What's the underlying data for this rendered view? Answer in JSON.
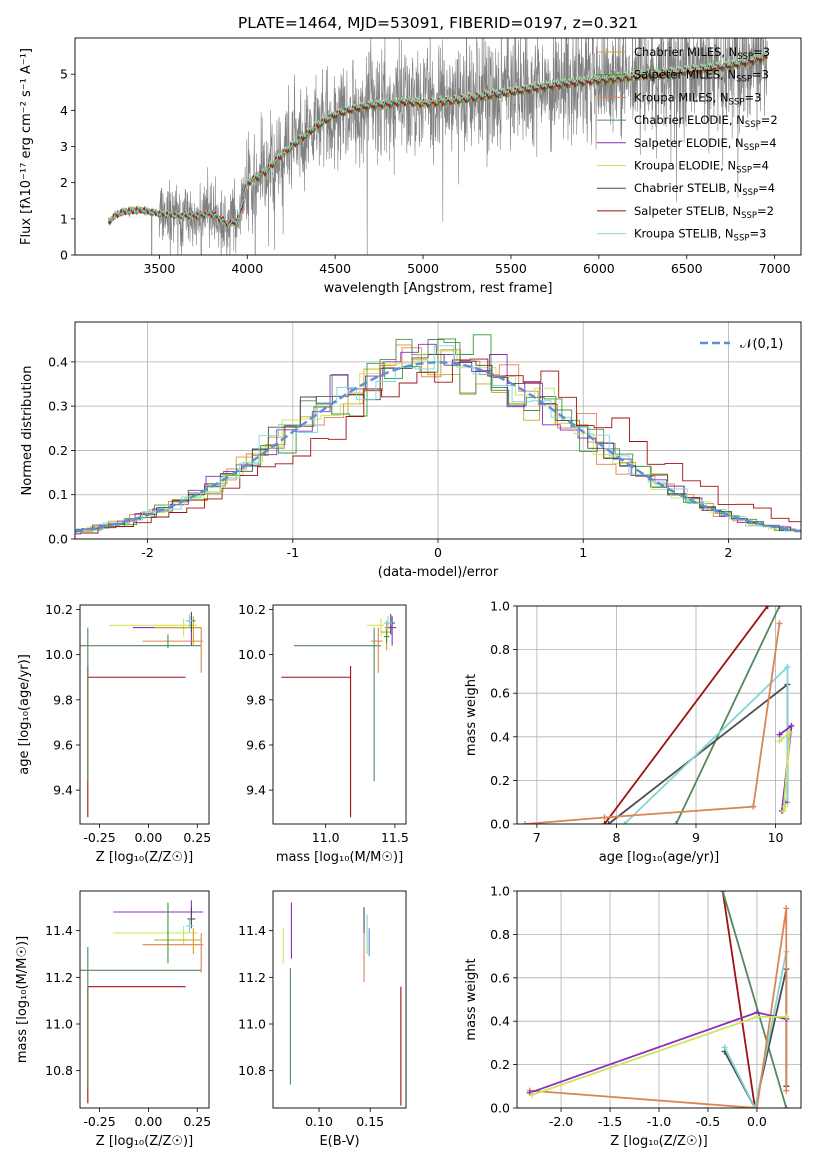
{
  "colors": {
    "chabrier_miles": "#d4a017",
    "salpeter_miles": "#2ca02c",
    "kroupa_miles": "#dd8452",
    "chabrier_elodie": "#55885f",
    "salpeter_elodie": "#8c2cbf",
    "kroupa_elodie": "#c9e75a",
    "chabrier_stelib": "#4d4d4d",
    "salpeter_stelib": "#a01010",
    "kroupa_stelib": "#7fd6d8",
    "gaussian": "#5b8fd8",
    "data_spectrum": "#808080"
  },
  "chart_data": [
    {
      "id": "spectrum",
      "type": "line",
      "title": "PLATE=1464, MJD=53091, FIBERID=0197, z=0.321",
      "xlabel": "wavelength [Angstrom, rest frame]",
      "ylabel": "Flux [fλ10⁻¹⁷ erg cm⁻² s⁻¹ A⁻¹]",
      "xlim": [
        3020,
        7150
      ],
      "ylim": [
        0,
        6
      ],
      "xticks": [
        3500,
        4000,
        4500,
        5000,
        5500,
        6000,
        6500,
        7000
      ],
      "yticks": [
        0,
        1,
        2,
        3,
        4,
        5
      ],
      "grid": false,
      "legend_position": "top-right",
      "legend": [
        {
          "label": "Chabrier MILES, N",
          "sub": "SSP",
          "suffix": "=3",
          "color_key": "chabrier_miles"
        },
        {
          "label": "Salpeter MILES, N",
          "sub": "SSP",
          "suffix": "=3",
          "color_key": "salpeter_miles"
        },
        {
          "label": "Kroupa MILES, N",
          "sub": "SSP",
          "suffix": "=3",
          "color_key": "kroupa_miles"
        },
        {
          "label": "Chabrier ELODIE, N",
          "sub": "SSP",
          "suffix": "=2",
          "color_key": "chabrier_elodie"
        },
        {
          "label": "Salpeter ELODIE, N",
          "sub": "SSP",
          "suffix": "=4",
          "color_key": "salpeter_elodie"
        },
        {
          "label": "Kroupa ELODIE, N",
          "sub": "SSP",
          "suffix": "=4",
          "color_key": "kroupa_elodie"
        },
        {
          "label": "Chabrier STELIB, N",
          "sub": "SSP",
          "suffix": "=4",
          "color_key": "chabrier_stelib"
        },
        {
          "label": "Salpeter STELIB, N",
          "sub": "SSP",
          "suffix": "=2",
          "color_key": "salpeter_stelib"
        },
        {
          "label": "Kroupa STELIB, N",
          "sub": "SSP",
          "suffix": "=3",
          "color_key": "kroupa_stelib"
        }
      ],
      "model_continuum": {
        "x": [
          3210,
          3250,
          3300,
          3400,
          3500,
          3600,
          3700,
          3800,
          3900,
          3950,
          4000,
          4100,
          4200,
          4300,
          4400,
          4500,
          4600,
          4700,
          4800,
          4900,
          5000,
          5200,
          5400,
          5600,
          5800,
          6000,
          6200,
          6400,
          6600,
          6800,
          6950
        ],
        "y": [
          0.9,
          1.1,
          1.2,
          1.25,
          1.15,
          1.1,
          1.1,
          1.15,
          0.85,
          1.0,
          2.0,
          2.3,
          2.8,
          3.2,
          3.6,
          3.9,
          4.05,
          4.15,
          4.2,
          4.25,
          4.2,
          4.3,
          4.45,
          4.6,
          4.75,
          4.85,
          4.95,
          5.05,
          5.15,
          5.3,
          5.5
        ]
      },
      "data_spectrum": {
        "x_start": 3210,
        "x_end": 6960,
        "noise_scale": "increasing with wavelength"
      }
    },
    {
      "id": "residuals",
      "type": "line",
      "xlabel": "(data-model)/error",
      "ylabel": "Normed distribution",
      "xlim": [
        -2.5,
        2.5
      ],
      "ylim": [
        0,
        0.49
      ],
      "xticks": [
        -2,
        -1,
        0,
        1,
        2
      ],
      "yticks": [
        0.0,
        0.1,
        0.2,
        0.3,
        0.4
      ],
      "grid": true,
      "legend_position": "top-right",
      "legend_label": "𝒩(0,1)",
      "gaussian": {
        "mean": 0,
        "sigma": 1
      }
    },
    {
      "id": "age_vs_Z",
      "type": "scatter",
      "xlabel": "Z [log₁₀(Z/Z☉)]",
      "ylabel": "age  [log₁₀(age/yr)]",
      "xlim": [
        -0.35,
        0.31
      ],
      "ylim": [
        9.25,
        10.22
      ],
      "xticks": [
        -0.25,
        0.0,
        0.25
      ],
      "yticks": [
        9.4,
        9.6,
        9.8,
        10.0,
        10.2
      ],
      "grid": false,
      "points": [
        {
          "key": "salpeter_stelib",
          "x": -0.31,
          "y": 9.9,
          "xerr": [
            0,
            0.5
          ],
          "yerr": [
            0.62,
            0.05
          ]
        },
        {
          "key": "chabrier_elodie",
          "x": -0.31,
          "y": 10.04,
          "xerr": [
            0.05,
            0.58
          ],
          "yerr": [
            0.6,
            0.08
          ]
        },
        {
          "key": "kroupa_elodie",
          "x": 0.18,
          "y": 10.13,
          "xerr": [
            0.38,
            0.07
          ],
          "yerr": [
            0.05,
            0.03
          ]
        },
        {
          "key": "salpeter_elodie",
          "x": 0.22,
          "y": 10.12,
          "xerr": [
            0.3,
            0.04
          ],
          "yerr": [
            0.08,
            0.05
          ]
        },
        {
          "key": "kroupa_miles",
          "x": 0.27,
          "y": 10.06,
          "xerr": [
            0.3,
            0.01
          ],
          "yerr": [
            0.14,
            0.06
          ]
        },
        {
          "key": "chabrier_miles",
          "x": 0.23,
          "y": 10.12,
          "xerr": [
            0.2,
            0.04
          ],
          "yerr": [
            0.08,
            0.05
          ]
        },
        {
          "key": "chabrier_stelib",
          "x": 0.22,
          "y": 10.15,
          "xerr": [
            0.02,
            0.02
          ],
          "yerr": [
            0.05,
            0.04
          ]
        },
        {
          "key": "kroupa_stelib",
          "x": 0.21,
          "y": 10.15,
          "xerr": [
            0.02,
            0.02
          ],
          "yerr": [
            0.03,
            0.03
          ]
        },
        {
          "key": "salpeter_miles",
          "x": 0.1,
          "y": 10.06,
          "xerr": [
            0.0,
            0.0
          ],
          "yerr": [
            0.03,
            0.03
          ]
        }
      ]
    },
    {
      "id": "age_vs_mass",
      "type": "scatter",
      "xlabel": "mass [log₁₀(M/M☉)]",
      "ylabel": "",
      "xlim": [
        10.62,
        11.58
      ],
      "ylim": [
        9.25,
        10.22
      ],
      "xticks": [
        11.0,
        11.5
      ],
      "yticks": [
        9.4,
        9.6,
        9.8,
        10.0,
        10.2
      ],
      "grid": false,
      "points": [
        {
          "key": "salpeter_stelib",
          "x": 11.18,
          "y": 9.9,
          "xerr": [
            0.5,
            0
          ],
          "yerr": [
            0.62,
            0.05
          ]
        },
        {
          "key": "chabrier_elodie",
          "x": 11.35,
          "y": 10.04,
          "xerr": [
            0.58,
            0.05
          ],
          "yerr": [
            0.6,
            0.08
          ]
        },
        {
          "key": "kroupa_elodie",
          "x": 11.4,
          "y": 10.13,
          "xerr": [
            0.1,
            0.02
          ],
          "yerr": [
            0.05,
            0.03
          ]
        },
        {
          "key": "salpeter_elodie",
          "x": 11.48,
          "y": 10.12,
          "xerr": [
            0.05,
            0.03
          ],
          "yerr": [
            0.08,
            0.05
          ]
        },
        {
          "key": "kroupa_miles",
          "x": 11.38,
          "y": 10.06,
          "xerr": [
            0.05,
            0.03
          ],
          "yerr": [
            0.14,
            0.06
          ]
        },
        {
          "key": "chabrier_miles",
          "x": 11.44,
          "y": 10.1,
          "xerr": [
            0.04,
            0.03
          ],
          "yerr": [
            0.08,
            0.05
          ]
        },
        {
          "key": "chabrier_stelib",
          "x": 11.47,
          "y": 10.14,
          "xerr": [
            0.03,
            0.03
          ],
          "yerr": [
            0.05,
            0.04
          ]
        },
        {
          "key": "kroupa_stelib",
          "x": 11.45,
          "y": 10.14,
          "xerr": [
            0.03,
            0.03
          ],
          "yerr": [
            0.03,
            0.03
          ]
        },
        {
          "key": "salpeter_miles",
          "x": 11.44,
          "y": 10.08,
          "xerr": [
            0.02,
            0.02
          ],
          "yerr": [
            0.03,
            0.03
          ]
        }
      ]
    },
    {
      "id": "weight_vs_age",
      "type": "line",
      "xlabel": "age  [log₁₀(age/yr)]",
      "ylabel": "mass weight",
      "xlim": [
        6.75,
        10.32
      ],
      "ylim": [
        0,
        1
      ],
      "xticks": [
        7,
        8,
        9,
        10
      ],
      "yticks": [
        0.0,
        0.2,
        0.4,
        0.6,
        0.8,
        1.0
      ],
      "grid": true,
      "series": [
        {
          "key": "salpeter_stelib",
          "x": [
            7.85,
            9.9
          ],
          "y": [
            0.0,
            1.0
          ]
        },
        {
          "key": "chabrier_elodie",
          "x": [
            8.75,
            10.05
          ],
          "y": [
            0.0,
            1.0
          ]
        },
        {
          "key": "chabrier_stelib",
          "x": [
            7.9,
            10.15,
            10.15
          ],
          "y": [
            0.0,
            0.64,
            0.1
          ]
        },
        {
          "key": "kroupa_stelib",
          "x": [
            8.1,
            10.15,
            10.15
          ],
          "y": [
            0.0,
            0.72,
            0.1
          ]
        },
        {
          "key": "kroupa_miles",
          "x": [
            6.85,
            7.85,
            9.72,
            10.05,
            9.72
          ],
          "y": [
            0.0,
            0.03,
            0.08,
            0.92,
            0.08
          ]
        },
        {
          "key": "salpeter_elodie",
          "x": [
            10.05,
            10.2,
            10.08,
            10.12
          ],
          "y": [
            0.41,
            0.45,
            0.06,
            0.1
          ]
        },
        {
          "key": "kroupa_elodie",
          "x": [
            10.05,
            10.18,
            10.1,
            10.12
          ],
          "y": [
            0.38,
            0.42,
            0.06,
            0.08
          ]
        }
      ]
    },
    {
      "id": "mass_vs_Z",
      "type": "scatter",
      "xlabel": "Z [log₁₀(Z/Z☉)]",
      "ylabel": "mass [log₁₀(M/M☉)]",
      "xlim": [
        -0.35,
        0.31
      ],
      "ylim": [
        10.64,
        11.57
      ],
      "xticks": [
        -0.25,
        0.0,
        0.25
      ],
      "yticks": [
        10.8,
        11.0,
        11.2,
        11.4
      ],
      "grid": false,
      "points": [
        {
          "key": "salpeter_stelib",
          "x": -0.31,
          "y": 11.16,
          "xerr": [
            0,
            0.5
          ],
          "yerr": [
            0.5,
            0
          ]
        },
        {
          "key": "chabrier_elodie",
          "x": -0.31,
          "y": 11.23,
          "xerr": [
            0.05,
            0.58
          ],
          "yerr": [
            0.5,
            0.1
          ]
        },
        {
          "key": "kroupa_elodie",
          "x": 0.18,
          "y": 11.39,
          "xerr": [
            0.36,
            0.07
          ],
          "yerr": [
            0.05,
            0.03
          ]
        },
        {
          "key": "salpeter_elodie",
          "x": 0.22,
          "y": 11.48,
          "xerr": [
            0.4,
            0.06
          ],
          "yerr": [
            0.05,
            0.05
          ]
        },
        {
          "key": "kroupa_miles",
          "x": 0.27,
          "y": 11.34,
          "xerr": [
            0.3,
            0.01
          ],
          "yerr": [
            0.12,
            0.05
          ]
        },
        {
          "key": "chabrier_miles",
          "x": 0.23,
          "y": 11.36,
          "xerr": [
            0.2,
            0.04
          ],
          "yerr": [
            0.06,
            0.05
          ]
        },
        {
          "key": "chabrier_stelib",
          "x": 0.22,
          "y": 11.45,
          "xerr": [
            0.02,
            0.02
          ],
          "yerr": [
            0.04,
            0.05
          ]
        },
        {
          "key": "kroupa_stelib",
          "x": 0.21,
          "y": 11.42,
          "xerr": [
            0.02,
            0.02
          ],
          "yerr": [
            0.03,
            0.03
          ]
        },
        {
          "key": "salpeter_miles",
          "x": 0.1,
          "y": 11.4,
          "xerr": [
            0.0,
            0.0
          ],
          "yerr": [
            0.14,
            0.12
          ]
        }
      ]
    },
    {
      "id": "mass_vs_ebv",
      "type": "scatter",
      "xlabel": "E(B-V)",
      "ylabel": "",
      "xlim": [
        0.055,
        0.185
      ],
      "ylim": [
        10.64,
        11.57
      ],
      "xticks": [
        0.1,
        0.15
      ],
      "yticks": [
        10.8,
        11.0,
        11.2,
        11.4
      ],
      "grid": false,
      "points": [
        {
          "key": "kroupa_elodie",
          "x": 0.065,
          "y": 11.33,
          "xerr": [
            0,
            0
          ],
          "yerr": [
            0.07,
            0.08
          ]
        },
        {
          "key": "chabrier_elodie",
          "x": 0.072,
          "y": 11.1,
          "xerr": [
            0,
            0
          ],
          "yerr": [
            0.36,
            0.14
          ]
        },
        {
          "key": "salpeter_elodie",
          "x": 0.073,
          "y": 11.4,
          "xerr": [
            0,
            0
          ],
          "yerr": [
            0.12,
            0.12
          ]
        },
        {
          "key": "kroupa_miles",
          "x": 0.144,
          "y": 11.3,
          "xerr": [
            0,
            0
          ],
          "yerr": [
            0.12,
            0.1
          ]
        },
        {
          "key": "chabrier_stelib",
          "x": 0.144,
          "y": 11.44,
          "xerr": [
            0,
            0
          ],
          "yerr": [
            0.05,
            0.06
          ]
        },
        {
          "key": "kroupa_stelib",
          "x": 0.147,
          "y": 11.38,
          "xerr": [
            0,
            0
          ],
          "yerr": [
            0.08,
            0.09
          ]
        },
        {
          "key": "gaussian",
          "x": 0.149,
          "y": 11.35,
          "xerr": [
            0,
            0
          ],
          "yerr": [
            0.06,
            0.06
          ]
        },
        {
          "key": "salpeter_stelib",
          "x": 0.18,
          "y": 10.9,
          "xerr": [
            0,
            0
          ],
          "yerr": [
            0.25,
            0.26
          ]
        }
      ]
    },
    {
      "id": "weight_vs_Z",
      "type": "line",
      "xlabel": "Z [log₁₀(Z/Z☉)]",
      "ylabel": "mass weight",
      "xlim": [
        -2.45,
        0.45
      ],
      "ylim": [
        0,
        1
      ],
      "xticks": [
        -2.0,
        -1.5,
        -1.0,
        -0.5,
        0.0
      ],
      "yticks": [
        0.0,
        0.2,
        0.4,
        0.6,
        0.8,
        1.0
      ],
      "grid": true,
      "series": [
        {
          "key": "salpeter_stelib",
          "x": [
            -0.35,
            -0.02
          ],
          "y": [
            1.0,
            0.0
          ]
        },
        {
          "key": "chabrier_elodie",
          "x": [
            -0.35,
            0.3
          ],
          "y": [
            1.0,
            0.0
          ]
        },
        {
          "key": "chabrier_stelib",
          "x": [
            -0.33,
            -0.02,
            0.3,
            0.3
          ],
          "y": [
            0.26,
            0.0,
            0.64,
            0.1
          ]
        },
        {
          "key": "kroupa_stelib",
          "x": [
            -0.33,
            -0.02,
            0.3
          ],
          "y": [
            0.28,
            0.0,
            0.72
          ]
        },
        {
          "key": "kroupa_miles",
          "x": [
            -2.32,
            0.0,
            0.3,
            0.3
          ],
          "y": [
            0.08,
            0.0,
            0.92,
            0.08
          ]
        },
        {
          "key": "salpeter_elodie",
          "x": [
            -2.32,
            0.0,
            0.3
          ],
          "y": [
            0.07,
            0.44,
            0.41
          ]
        },
        {
          "key": "kroupa_elodie",
          "x": [
            -2.3,
            0.0,
            0.3
          ],
          "y": [
            0.06,
            0.42,
            0.42
          ]
        }
      ]
    }
  ]
}
